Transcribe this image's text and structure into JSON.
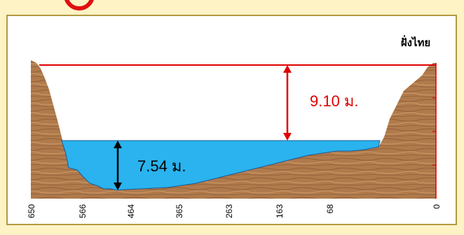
{
  "page": {
    "bank_label": "ฝั่งไทย"
  },
  "diagram": {
    "max_depth_label": "9.10 ม.",
    "water_depth_label": "7.54 ม.",
    "x_ticks": [
      "650",
      "566",
      "464",
      "365",
      "263",
      "163",
      "68",
      "0"
    ]
  },
  "colors": {
    "background": "#fdf3c4",
    "border": "#b19a3f",
    "water": "#2ab3ee",
    "soil": "#b07a4c",
    "max_level_line": "#e00000",
    "accent_circle": "#e01010"
  }
}
